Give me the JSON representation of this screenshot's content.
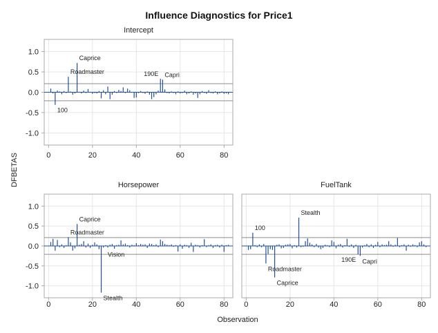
{
  "title": "Influence Diagnostics for Price1",
  "ylabel": "DFBETAS",
  "xlabel": "Observation",
  "colors": {
    "spike": "#1f4e9c",
    "cutoff": "#8c8c8c",
    "grid": "#e6e6e6",
    "frame": "#a8a8a8",
    "text": "#222222"
  },
  "chart_data": [
    {
      "type": "needle",
      "title": "Intercept",
      "cutoff": 0.21,
      "ylim": [
        -1.3,
        1.3
      ],
      "xlim": [
        -2,
        84
      ],
      "yticks": [
        -1.0,
        -0.5,
        0.0,
        0.5,
        1.0
      ],
      "ytick_labels": [
        "-1.0",
        "-0.5",
        "0.0",
        "0.5",
        "1.0"
      ],
      "xticks": [
        0,
        20,
        40,
        60,
        80
      ],
      "xtick_labels": [
        "0",
        "20",
        "40",
        "60",
        "80"
      ],
      "x": [
        1,
        2,
        3,
        4,
        5,
        6,
        7,
        8,
        9,
        10,
        11,
        12,
        13,
        14,
        15,
        16,
        17,
        18,
        19,
        20,
        21,
        22,
        23,
        24,
        25,
        26,
        27,
        28,
        29,
        30,
        31,
        32,
        33,
        34,
        35,
        36,
        37,
        38,
        39,
        40,
        41,
        42,
        43,
        44,
        45,
        46,
        47,
        48,
        49,
        50,
        51,
        52,
        53,
        54,
        55,
        56,
        57,
        58,
        59,
        60,
        61,
        62,
        63,
        64,
        65,
        66,
        67,
        68,
        69,
        70,
        71,
        72,
        73,
        74,
        75,
        76,
        77,
        78,
        79,
        80,
        81,
        82
      ],
      "y": [
        0.09,
        -0.03,
        -0.31,
        0.04,
        0.02,
        -0.05,
        0.03,
        -0.02,
        0.38,
        0.02,
        -0.06,
        -0.03,
        0.72,
        0.01,
        -0.03,
        0.04,
        -0.02,
        0.08,
        0.01,
        -0.04,
        -0.02,
        -0.03,
        0.03,
        -0.15,
        0.05,
        -0.05,
        0.14,
        -0.17,
        -0.06,
        0.03,
        -0.02,
        0.06,
        0.03,
        0.12,
        -0.02,
        0.09,
        0.05,
        -0.01,
        -0.14,
        -0.13,
        -0.02,
        0.03,
        -0.02,
        -0.04,
        0.02,
        -0.06,
        -0.17,
        -0.12,
        -0.05,
        0.04,
        0.33,
        0.31,
        0.07,
        -0.02,
        -0.03,
        0.02,
        -0.02,
        -0.05,
        0.02,
        -0.03,
        -0.02,
        0.04,
        -0.05,
        -0.03,
        0.02,
        -0.06,
        -0.03,
        -0.14,
        -0.05,
        0.03,
        -0.02,
        -0.04,
        0.05,
        -0.02,
        -0.03,
        0.02,
        -0.05,
        -0.03,
        0.02,
        -0.04,
        -0.03,
        -0.05
      ],
      "labels": [
        {
          "x": 3,
          "y": -0.31,
          "text": "100",
          "side": "right"
        },
        {
          "x": 9,
          "y": 0.38,
          "text": "Roadmaster",
          "side": "right"
        },
        {
          "x": 13,
          "y": 0.72,
          "text": "Caprice",
          "side": "right"
        },
        {
          "x": 51,
          "y": 0.33,
          "text": "190E",
          "side": "left"
        },
        {
          "x": 52,
          "y": 0.31,
          "text": "Capri",
          "side": "right"
        }
      ]
    },
    {
      "type": "needle",
      "title": "Horsepower",
      "cutoff": 0.21,
      "ylim": [
        -1.3,
        1.3
      ],
      "xlim": [
        -2,
        84
      ],
      "yticks": [
        -1.0,
        -0.5,
        0.0,
        0.5,
        1.0
      ],
      "ytick_labels": [
        "-1.0",
        "-0.5",
        "0.0",
        "0.5",
        "1.0"
      ],
      "xticks": [
        0,
        20,
        40,
        60,
        80
      ],
      "xtick_labels": [
        "0",
        "20",
        "40",
        "60",
        "80"
      ],
      "x": [
        1,
        2,
        3,
        4,
        5,
        6,
        7,
        8,
        9,
        10,
        11,
        12,
        13,
        14,
        15,
        16,
        17,
        18,
        19,
        20,
        21,
        22,
        23,
        24,
        25,
        26,
        27,
        28,
        29,
        30,
        31,
        32,
        33,
        34,
        35,
        36,
        37,
        38,
        39,
        40,
        41,
        42,
        43,
        44,
        45,
        46,
        47,
        48,
        49,
        50,
        51,
        52,
        53,
        54,
        55,
        56,
        57,
        58,
        59,
        60,
        61,
        62,
        63,
        64,
        65,
        66,
        67,
        68,
        69,
        70,
        71,
        72,
        73,
        74,
        75,
        76,
        77,
        78,
        79,
        80,
        81,
        82
      ],
      "y": [
        0.1,
        0.18,
        -0.12,
        0.15,
        -0.03,
        0.04,
        -0.05,
        0.02,
        0.22,
        0.09,
        -0.12,
        -0.06,
        0.55,
        0.03,
        0.05,
        0.12,
        -0.04,
        0.06,
        -0.05,
        0.03,
        0.09,
        0.04,
        -0.08,
        -1.17,
        -0.04,
        0.02,
        -0.04,
        0.03,
        0.05,
        -0.07,
        0.02,
        0.03,
        0.14,
        0.04,
        0.06,
        0.02,
        -0.04,
        0.03,
        0.02,
        0.07,
        0.02,
        0.05,
        0.03,
        0.04,
        -0.05,
        0.06,
        0.05,
        0.02,
        0.04,
        -0.03,
        0.16,
        0.12,
        0.05,
        0.03,
        0.02,
        0.04,
        -0.02,
        0.02,
        -0.14,
        0.04,
        -0.07,
        0.03,
        0.02,
        -0.05,
        0.08,
        -0.15,
        0.03,
        0.02,
        -0.04,
        0.02,
        0.17,
        -0.03,
        0.02,
        0.04,
        -0.05,
        0.02,
        0.03,
        -0.04,
        0.03,
        -0.15,
        0.02,
        0.03
      ],
      "labels": [
        {
          "x": 9,
          "y": 0.22,
          "text": "Roadmaster",
          "side": "right"
        },
        {
          "x": 13,
          "y": 0.55,
          "text": "Caprice",
          "side": "right"
        },
        {
          "x": 24,
          "y": -1.17,
          "text": "Stealth",
          "side": "right"
        },
        {
          "x": 26,
          "y": -0.08,
          "text": "Vision",
          "side": "right"
        }
      ]
    },
    {
      "type": "needle",
      "title": "FuelTank",
      "cutoff": 0.21,
      "ylim": [
        -1.3,
        1.3
      ],
      "xlim": [
        -2,
        84
      ],
      "yticks": [
        -1.0,
        -0.5,
        0.0,
        0.5,
        1.0
      ],
      "ytick_labels": [
        "-1.0",
        "-0.5",
        "0.0",
        "0.5",
        "1.0"
      ],
      "xticks": [
        0,
        20,
        40,
        60,
        80
      ],
      "xtick_labels": [
        "0",
        "20",
        "40",
        "60",
        "80"
      ],
      "x": [
        1,
        2,
        3,
        4,
        5,
        6,
        7,
        8,
        9,
        10,
        11,
        12,
        13,
        14,
        15,
        16,
        17,
        18,
        19,
        20,
        21,
        22,
        23,
        24,
        25,
        26,
        27,
        28,
        29,
        30,
        31,
        32,
        33,
        34,
        35,
        36,
        37,
        38,
        39,
        40,
        41,
        42,
        43,
        44,
        45,
        46,
        47,
        48,
        49,
        50,
        51,
        52,
        53,
        54,
        55,
        56,
        57,
        58,
        59,
        60,
        61,
        62,
        63,
        64,
        65,
        66,
        67,
        68,
        69,
        70,
        71,
        72,
        73,
        74,
        75,
        76,
        77,
        78,
        79,
        80,
        81,
        82
      ],
      "y": [
        -0.1,
        -0.08,
        0.33,
        0.02,
        -0.03,
        0.04,
        -0.03,
        0.05,
        -0.44,
        -0.2,
        -0.08,
        -0.1,
        -0.79,
        0.03,
        0.04,
        -0.06,
        -0.05,
        0.03,
        0.04,
        0.05,
        -0.06,
        0.02,
        -0.04,
        0.71,
        -0.03,
        -0.02,
        0.12,
        0.19,
        0.08,
        0.04,
        -0.03,
        0.05,
        -0.04,
        -0.08,
        -0.05,
        0.03,
        0.02,
        -0.03,
        0.14,
        0.1,
        -0.06,
        0.03,
        0.05,
        -0.04,
        0.02,
        0.18,
        -0.02,
        0.04,
        -0.05,
        0.03,
        -0.21,
        -0.25,
        -0.04,
        0.02,
        0.05,
        -0.03,
        0.04,
        -0.05,
        0.03,
        0.1,
        -0.03,
        0.04,
        0.02,
        0.03,
        0.12,
        0.04,
        -0.02,
        0.03,
        0.2,
        -0.03,
        0.02,
        0.04,
        -0.12,
        0.03,
        -0.02,
        0.04,
        0.02,
        -0.03,
        0.09,
        0.12,
        0.04,
        -0.03
      ],
      "labels": [
        {
          "x": 3,
          "y": 0.33,
          "text": "100",
          "side": "right"
        },
        {
          "x": 9,
          "y": -0.44,
          "text": "Roadmaster",
          "side": "right"
        },
        {
          "x": 13,
          "y": -0.79,
          "text": "Caprice",
          "side": "right"
        },
        {
          "x": 24,
          "y": 0.71,
          "text": "Stealth",
          "side": "right"
        },
        {
          "x": 51,
          "y": -0.21,
          "text": "190E",
          "side": "left"
        },
        {
          "x": 52,
          "y": -0.25,
          "text": "Capri",
          "side": "right"
        }
      ]
    }
  ]
}
